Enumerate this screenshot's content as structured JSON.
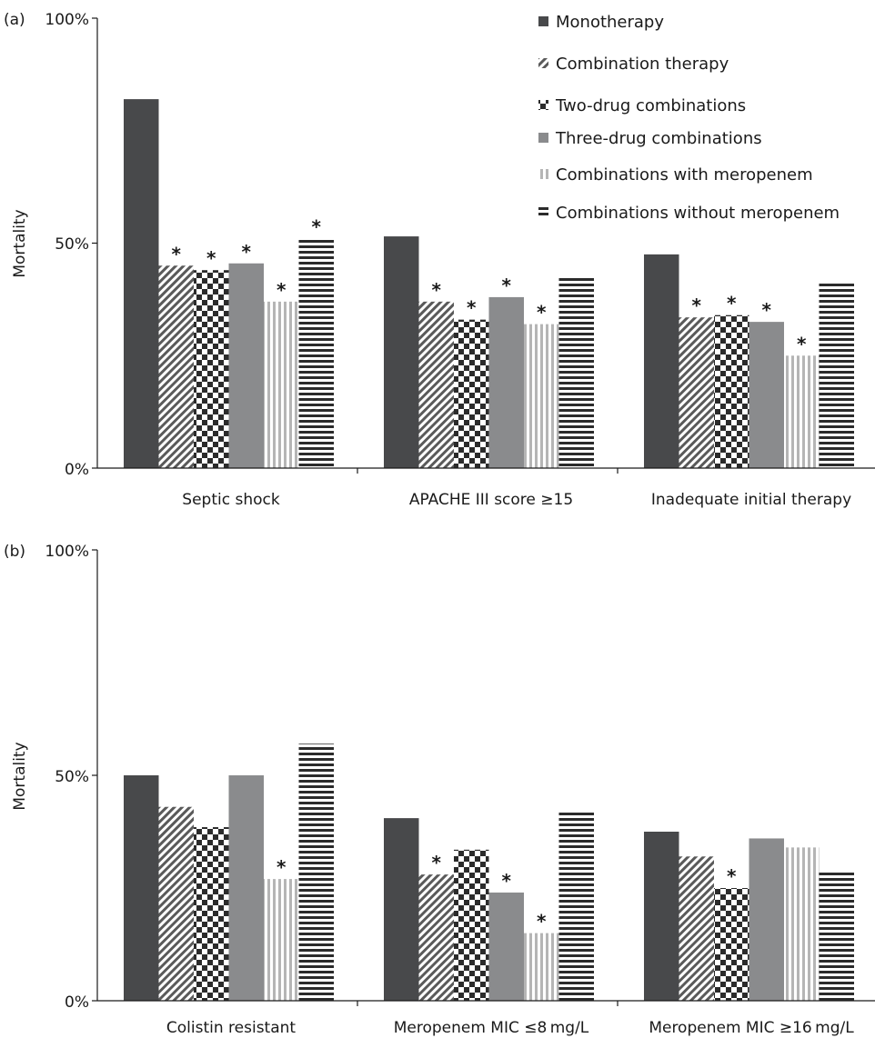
{
  "legend": {
    "items": [
      {
        "label": "Monotherapy",
        "pattern": "solid"
      },
      {
        "label": "Combination therapy",
        "pattern": "diagonal"
      },
      {
        "label": "Two-drug combinations",
        "pattern": "checker"
      },
      {
        "label": "Three-drug combinations",
        "pattern": "grey"
      },
      {
        "label": "Combinations with meropenem",
        "pattern": "vertical"
      },
      {
        "label": "Combinations without meropenem",
        "pattern": "horizontal"
      }
    ]
  },
  "colors": {
    "solid": "#48494b",
    "grey": "#8a8b8d",
    "stripe_dark": "#2b2b2b",
    "stripe_light": "#b5b5b5"
  },
  "chart_data": [
    {
      "type": "bar",
      "panel_label": "(a)",
      "ylabel": "Mortality",
      "ylim": [
        0,
        100
      ],
      "yticks": [
        "0%",
        "50%",
        "100%"
      ],
      "categories": [
        "Septic shock",
        "APACHE III score ≥15",
        "Inadequate initial therapy"
      ],
      "series": [
        {
          "name": "Monotherapy",
          "values": [
            82,
            51.5,
            47.5
          ],
          "significant": [
            false,
            false,
            false
          ]
        },
        {
          "name": "Combination therapy",
          "values": [
            45,
            37,
            33.5
          ],
          "significant": [
            true,
            true,
            true
          ]
        },
        {
          "name": "Two-drug combinations",
          "values": [
            44,
            33,
            34
          ],
          "significant": [
            true,
            true,
            true
          ]
        },
        {
          "name": "Three-drug combinations",
          "values": [
            45.5,
            38,
            32.5
          ],
          "significant": [
            true,
            true,
            true
          ]
        },
        {
          "name": "Combinations with meropenem",
          "values": [
            37,
            32,
            25
          ],
          "significant": [
            true,
            true,
            true
          ]
        },
        {
          "name": "Combinations without meropenem",
          "values": [
            51,
            42.5,
            41.5
          ],
          "significant": [
            true,
            false,
            false
          ]
        }
      ],
      "significance_marker": "*"
    },
    {
      "type": "bar",
      "panel_label": "(b)",
      "ylabel": "Mortality",
      "ylim": [
        0,
        100
      ],
      "yticks": [
        "0%",
        "50%",
        "100%"
      ],
      "categories": [
        "Colistin resistant",
        "Meropenem MIC ≤8 mg/L",
        "Meropenem MIC ≥16 mg/L"
      ],
      "series": [
        {
          "name": "Monotherapy",
          "values": [
            50,
            40.5,
            37.5
          ],
          "significant": [
            false,
            false,
            false
          ]
        },
        {
          "name": "Combination therapy",
          "values": [
            43,
            28,
            32
          ],
          "significant": [
            false,
            true,
            false
          ]
        },
        {
          "name": "Two-drug combinations",
          "values": [
            38.5,
            33.5,
            25
          ],
          "significant": [
            false,
            false,
            true
          ]
        },
        {
          "name": "Three-drug combinations",
          "values": [
            50,
            24,
            36
          ],
          "significant": [
            false,
            true,
            false
          ]
        },
        {
          "name": "Combinations with meropenem",
          "values": [
            27,
            15,
            34
          ],
          "significant": [
            true,
            true,
            false
          ]
        },
        {
          "name": "Combinations without meropenem",
          "values": [
            57,
            42,
            29
          ],
          "significant": [
            false,
            false,
            false
          ]
        }
      ],
      "significance_marker": "*"
    }
  ]
}
